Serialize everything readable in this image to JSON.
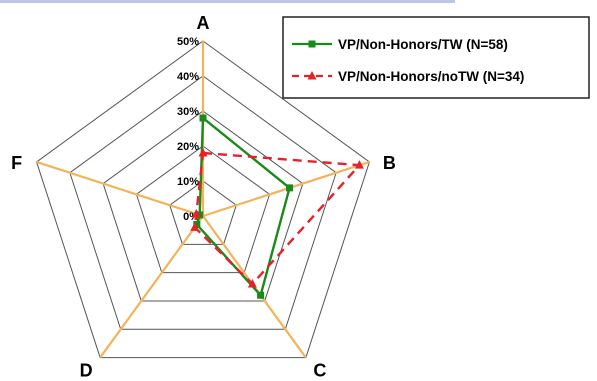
{
  "chart_data": {
    "type": "radar",
    "axes": [
      "A",
      "B",
      "C",
      "D",
      "F"
    ],
    "rlim": [
      0,
      50
    ],
    "ticks": [
      {
        "value": 0,
        "label": "0%"
      },
      {
        "value": 10,
        "label": "10%"
      },
      {
        "value": 20,
        "label": "20%"
      },
      {
        "value": 30,
        "label": "30%"
      },
      {
        "value": 40,
        "label": "40%"
      },
      {
        "value": 50,
        "label": "50%"
      }
    ],
    "series": [
      {
        "name": "VP/Non-Honors/TW (N=58)",
        "values": [
          28,
          26,
          28,
          3,
          1
        ],
        "color": "#1a8a1a",
        "marker": "square",
        "line": "solid"
      },
      {
        "name": "VP/Non-Honors/noTW (N=34)",
        "values": [
          18,
          47,
          24,
          4,
          2
        ],
        "color": "#e8202a",
        "marker": "triangle",
        "line": "dashed"
      }
    ],
    "colors": {
      "gridline": "#555555",
      "spoke": "#f2b35a",
      "legend_border": "#222222",
      "top_rule": "#b9c8e6"
    }
  }
}
